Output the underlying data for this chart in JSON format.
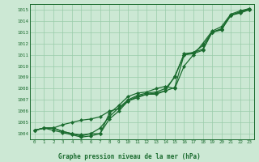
{
  "xlabel": "Graphe pression niveau de la mer (hPa)",
  "xlim": [
    -0.5,
    23.5
  ],
  "ylim": [
    1003.5,
    1015.5
  ],
  "yticks": [
    1004,
    1005,
    1006,
    1007,
    1008,
    1009,
    1010,
    1011,
    1012,
    1013,
    1014,
    1015
  ],
  "xticks": [
    0,
    1,
    2,
    3,
    4,
    5,
    6,
    7,
    8,
    9,
    10,
    11,
    12,
    13,
    14,
    15,
    16,
    17,
    18,
    19,
    20,
    21,
    22,
    23
  ],
  "bg_color": "#cce8d4",
  "grid_color": "#99ccaa",
  "line_color": "#1a6b2e",
  "series": [
    [
      1004.3,
      1004.5,
      1004.5,
      1004.8,
      1005.0,
      1005.2,
      1005.3,
      1005.5,
      1006.0,
      1006.2,
      1006.9,
      1007.2,
      1007.5,
      1007.6,
      1007.8,
      1008.1,
      1011.0,
      1011.1,
      1011.4,
      1013.0,
      1013.2,
      1014.5,
      1014.7,
      1015.0
    ],
    [
      1004.3,
      1004.5,
      1004.5,
      1004.2,
      1004.0,
      1003.9,
      1004.0,
      1004.5,
      1005.5,
      1006.3,
      1007.0,
      1007.4,
      1007.6,
      1007.7,
      1008.0,
      1009.0,
      1011.1,
      1011.2,
      1011.8,
      1013.0,
      1013.3,
      1014.5,
      1014.8,
      1015.1
    ],
    [
      1004.3,
      1004.5,
      1004.5,
      1004.2,
      1004.0,
      1003.8,
      1004.0,
      1004.0,
      1005.3,
      1006.0,
      1006.9,
      1007.3,
      1007.5,
      1007.5,
      1007.8,
      1009.1,
      1011.0,
      1011.2,
      1011.5,
      1013.0,
      1013.3,
      1014.5,
      1014.8,
      1015.0
    ],
    [
      1004.3,
      1004.5,
      1004.3,
      1004.1,
      1003.9,
      1003.7,
      1003.8,
      1004.0,
      1005.8,
      1006.5,
      1007.3,
      1007.6,
      1007.7,
      1008.0,
      1008.2,
      1008.0,
      1010.0,
      1011.0,
      1012.0,
      1013.1,
      1013.5,
      1014.6,
      1014.9,
      1015.1
    ]
  ]
}
